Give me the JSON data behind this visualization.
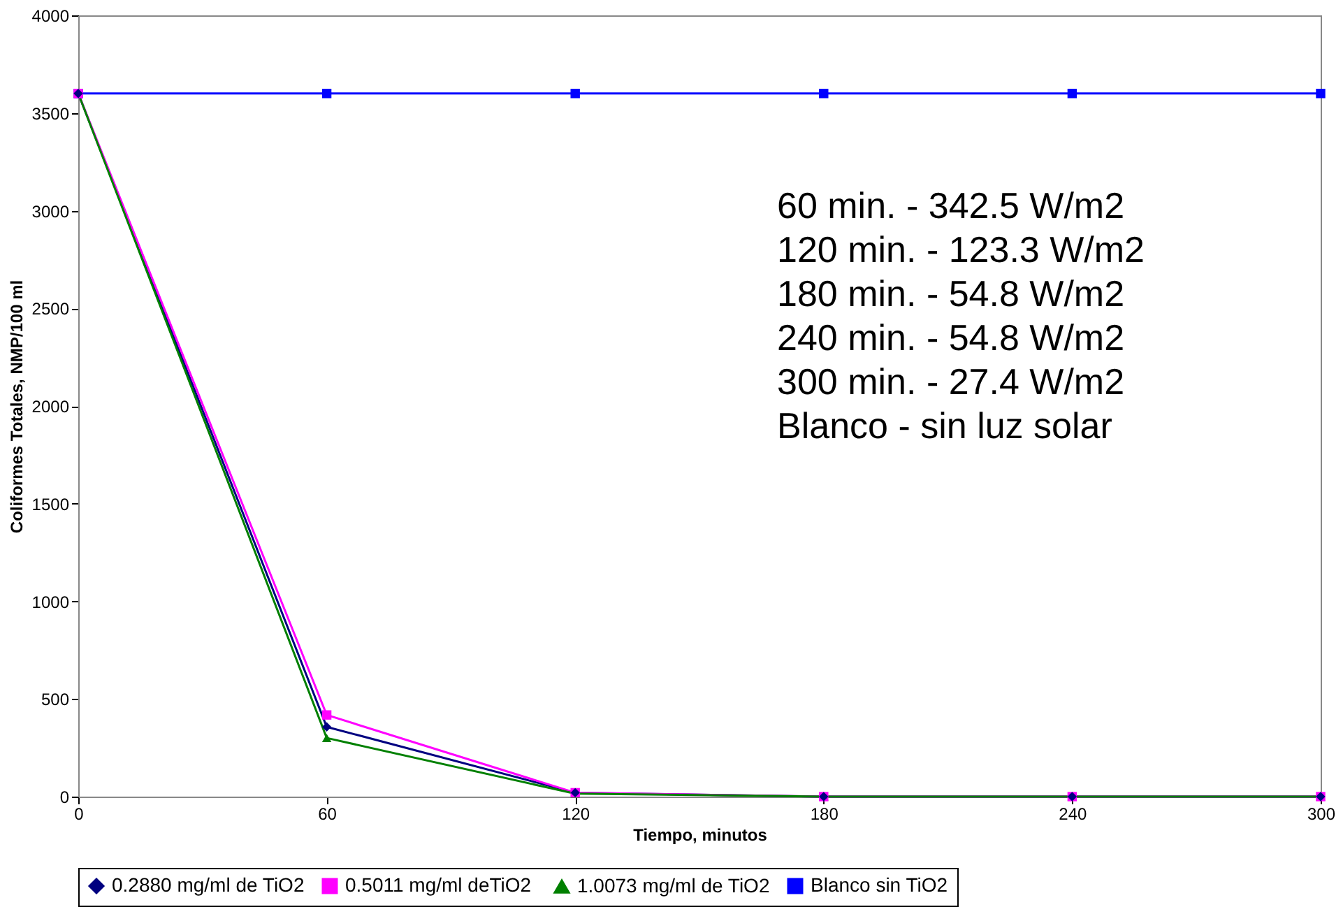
{
  "chart_data": {
    "type": "line",
    "xlabel": "Tiempo, minutos",
    "ylabel": "Coliformes Totales, NMP/100 ml",
    "x": [
      0,
      60,
      120,
      180,
      240,
      300
    ],
    "xlim": [
      0,
      300
    ],
    "xticks": [
      0,
      60,
      120,
      180,
      240,
      300
    ],
    "ylim": [
      0,
      4000
    ],
    "yticks": [
      0,
      500,
      1000,
      1500,
      2000,
      2500,
      3000,
      3500,
      4000
    ],
    "grid": false,
    "legend": "bottom",
    "line_style": "solid",
    "series": [
      {
        "name": "0.2880 mg/ml de TiO2",
        "color": "#000080",
        "marker": "diamond",
        "values": [
          3600,
          357,
          20,
          0,
          0,
          0
        ]
      },
      {
        "name": "0.5011  mg/ml deTiO2",
        "color": "#ff00ff",
        "marker": "square",
        "values": [
          3600,
          418,
          20,
          0,
          0,
          0
        ]
      },
      {
        "name": "1.0073 mg/ml de TiO2",
        "color": "#008000",
        "marker": "triangle",
        "values": [
          3600,
          300,
          15,
          0,
          0,
          0
        ]
      },
      {
        "name": "Blanco sin TiO2",
        "color": "#0000ff",
        "marker": "square",
        "values": [
          3600,
          3600,
          3600,
          3600,
          3600,
          3600
        ]
      }
    ],
    "annotations": [
      "60 min.   -  342.5 W/m2",
      "120 min. -  123.3 W/m2",
      "180 min. -    54.8 W/m2",
      "240 min. -    54.8 W/m2",
      "300 min. -    27.4 W/m2",
      "Blanco    -    sin luz solar"
    ]
  }
}
